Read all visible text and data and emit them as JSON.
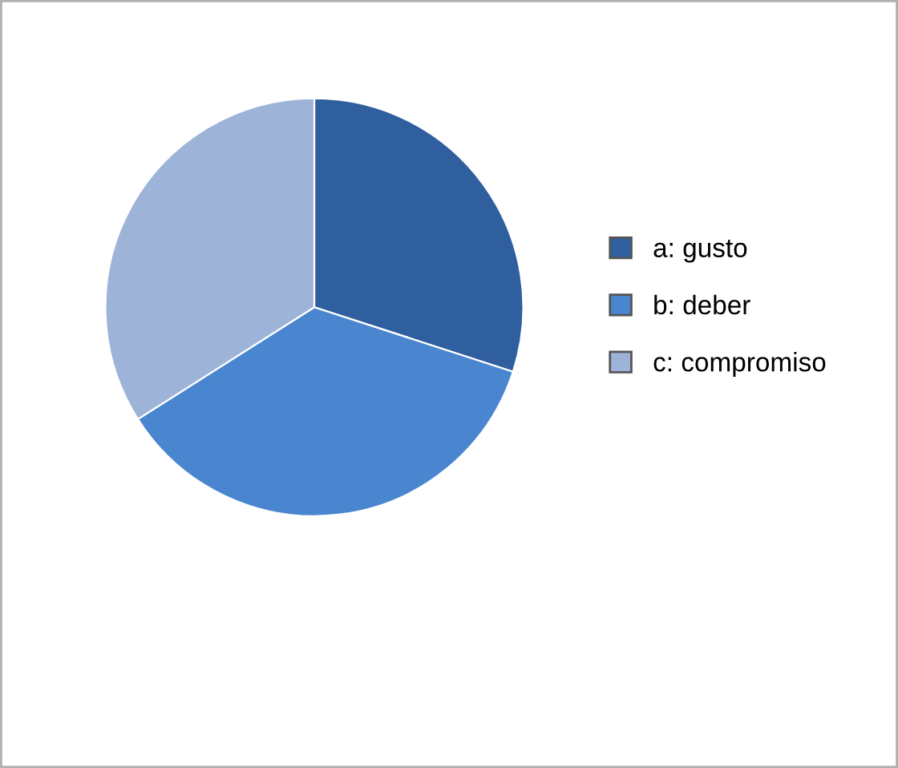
{
  "chart_data": {
    "type": "pie",
    "categories": [
      "a: gusto",
      "b: deber",
      "c: compromiso"
    ],
    "values": [
      30,
      36,
      34
    ],
    "colors": [
      "#2f5f9e",
      "#4a86d0",
      "#9db3d8"
    ],
    "legend": "right"
  }
}
